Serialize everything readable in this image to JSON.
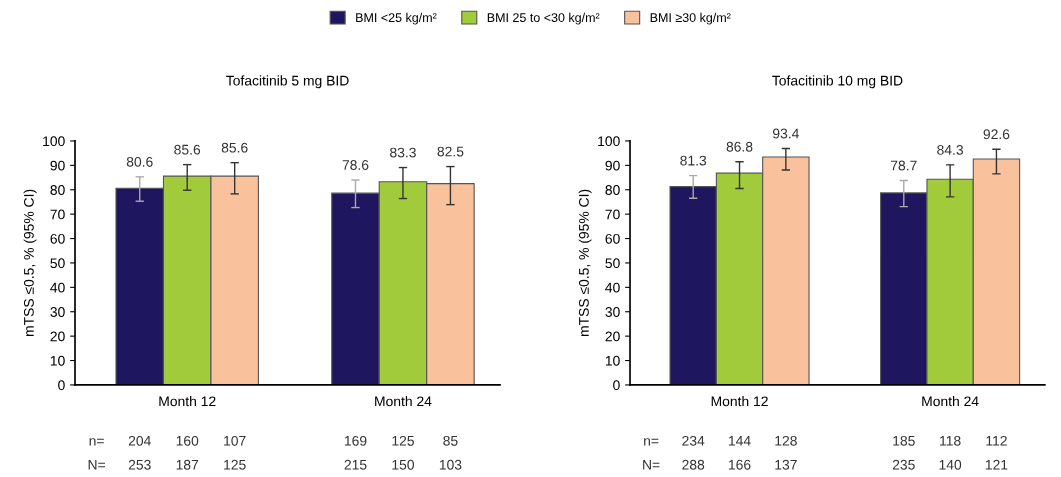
{
  "chart_data": [
    {
      "type": "bar",
      "title": "Tofacitinib 5 mg BID",
      "ylabel": "mTSS ≤0.5, % (95% CI)",
      "categories": [
        "Month 12",
        "Month 24"
      ],
      "series": [
        {
          "name": "BMI <25 kg/m²",
          "color": "#1f1660",
          "values": [
            80.6,
            78.6
          ],
          "errors": [
            [
              75.3,
              85.3
            ],
            [
              72.7,
              84.0
            ]
          ]
        },
        {
          "name": "BMI 25 to <30 kg/m²",
          "color": "#a2cb3c",
          "values": [
            85.6,
            83.3
          ],
          "errors": [
            [
              79.8,
              90.3
            ],
            [
              76.4,
              89.1
            ]
          ]
        },
        {
          "name": "BMI ≥30 kg/m²",
          "color": "#f9c19c",
          "values": [
            85.6,
            82.5
          ],
          "errors": [
            [
              78.3,
              91.1
            ],
            [
              73.9,
              89.5
            ]
          ]
        }
      ],
      "ylim": [
        0,
        100
      ],
      "yticks": [
        0,
        10,
        20,
        30,
        40,
        50,
        60,
        70,
        80,
        90,
        100
      ],
      "data_labels": true,
      "legend": "top",
      "grid": false,
      "annotations": [
        "n=",
        "204",
        "160",
        "107",
        "169",
        "125",
        "85",
        "N=",
        "253",
        "187",
        "125",
        "215",
        "150",
        "103"
      ]
    },
    {
      "type": "bar",
      "title": "Tofacitinib 10 mg BID",
      "ylabel": "mTSS ≤0.5, % (95% CI)",
      "categories": [
        "Month 12",
        "Month 24"
      ],
      "series": [
        {
          "name": "BMI <25 kg/m²",
          "color": "#1f1660",
          "values": [
            81.3,
            78.7
          ],
          "errors": [
            [
              76.5,
              85.8
            ],
            [
              73.1,
              83.8
            ]
          ]
        },
        {
          "name": "BMI 25 to <30 kg/m²",
          "color": "#a2cb3c",
          "values": [
            86.8,
            84.3
          ],
          "errors": [
            [
              80.5,
              91.5
            ],
            [
              77.1,
              90.2
            ]
          ]
        },
        {
          "name": "BMI ≥30 kg/m²",
          "color": "#f9c19c",
          "values": [
            93.4,
            92.6
          ],
          "errors": [
            [
              88.1,
              96.9
            ],
            [
              86.5,
              96.6
            ]
          ]
        }
      ],
      "ylim": [
        0,
        100
      ],
      "yticks": [
        0,
        10,
        20,
        30,
        40,
        50,
        60,
        70,
        80,
        90,
        100
      ],
      "data_labels": true,
      "legend": "top",
      "grid": false,
      "annotations": [
        "n=",
        "234",
        "144",
        "128",
        "185",
        "118",
        "112",
        "N=",
        "288",
        "166",
        "137",
        "235",
        "140",
        "121"
      ]
    }
  ]
}
